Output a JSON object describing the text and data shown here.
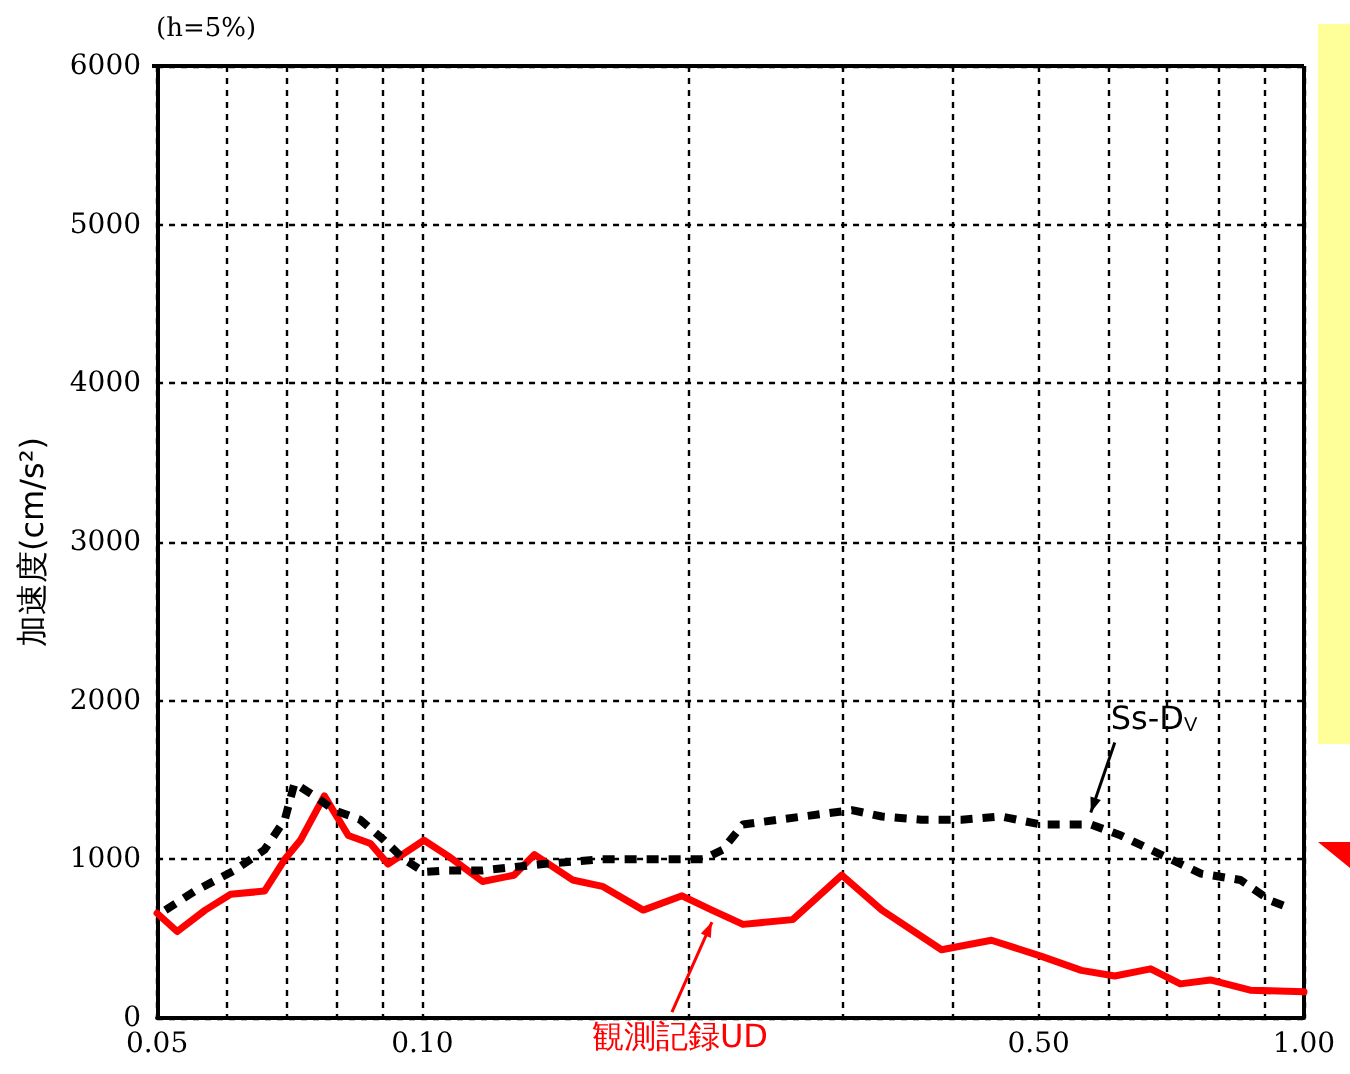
{
  "chart_data": {
    "type": "line",
    "ylabel": "加速度(cm/s²)",
    "annotations": [
      "(h=5%)"
    ],
    "log": "x",
    "xlim": [
      0.05,
      1.0
    ],
    "ylim": [
      0,
      6000
    ],
    "xticks": [
      {
        "value": 0.05,
        "label": "0.05"
      },
      {
        "value": 0.06,
        "label": null
      },
      {
        "value": 0.07,
        "label": null
      },
      {
        "value": 0.08,
        "label": null
      },
      {
        "value": 0.09,
        "label": null
      },
      {
        "value": 0.1,
        "label": "0.10"
      },
      {
        "value": 0.2,
        "label": null
      },
      {
        "value": 0.3,
        "label": null
      },
      {
        "value": 0.4,
        "label": null
      },
      {
        "value": 0.5,
        "label": "0.50"
      },
      {
        "value": 0.6,
        "label": null
      },
      {
        "value": 0.7,
        "label": null
      },
      {
        "value": 0.8,
        "label": null
      },
      {
        "value": 0.9,
        "label": null
      },
      {
        "value": 1.0,
        "label": "1.00"
      }
    ],
    "yticks": [
      0,
      1000,
      2000,
      3000,
      4000,
      5000,
      6000
    ],
    "grid": true,
    "legend": false,
    "marker": "none",
    "series": [
      {
        "name": "Ss-D$_{V}$",
        "color": "#000000",
        "line_style": "dashed",
        "x": [
          0.0511,
          0.0552,
          0.0612,
          0.0662,
          0.0698,
          0.0716,
          0.0754,
          0.0794,
          0.085,
          0.0905,
          0.0953,
          0.1004,
          0.107,
          0.117,
          0.137,
          0.16,
          0.187,
          0.208,
          0.219,
          0.231,
          0.27,
          0.307,
          0.332,
          0.368,
          0.409,
          0.453,
          0.503,
          0.573,
          0.62,
          0.688,
          0.764,
          0.847,
          0.916,
          0.966
        ],
        "values": [
          680,
          800,
          930,
          1060,
          1250,
          1480,
          1400,
          1310,
          1250,
          1120,
          1000,
          920,
          930,
          930,
          970,
          1000,
          1000,
          1000,
          1060,
          1220,
          1270,
          1310,
          1270,
          1250,
          1250,
          1270,
          1220,
          1220,
          1150,
          1030,
          910,
          870,
          740,
          690
        ]
      },
      {
        "name": "観測記録UD",
        "color": "#ff0000",
        "line_style": "solid",
        "x": [
          0.05,
          0.0527,
          0.0567,
          0.0606,
          0.0662,
          0.0698,
          0.0727,
          0.0774,
          0.0824,
          0.0873,
          0.0914,
          0.1004,
          0.107,
          0.117,
          0.127,
          0.134,
          0.148,
          0.16,
          0.178,
          0.197,
          0.213,
          0.231,
          0.263,
          0.299,
          0.332,
          0.388,
          0.442,
          0.503,
          0.559,
          0.61,
          0.67,
          0.724,
          0.783,
          0.869,
          1.0
        ],
        "values": [
          660,
          545,
          680,
          780,
          800,
          1000,
          1120,
          1400,
          1150,
          1100,
          970,
          1120,
          1020,
          860,
          900,
          1030,
          870,
          830,
          680,
          770,
          680,
          590,
          620,
          900,
          680,
          430,
          490,
          390,
          300,
          265,
          310,
          215,
          240,
          175,
          165
        ]
      }
    ]
  }
}
